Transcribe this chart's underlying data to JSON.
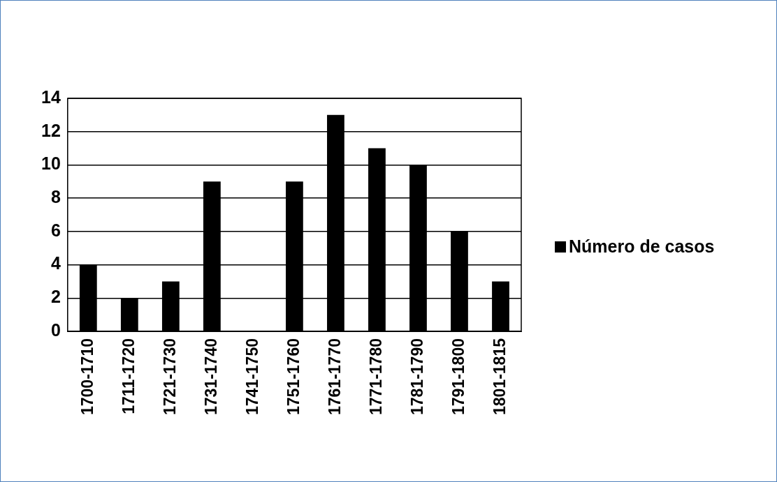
{
  "chart_data": {
    "type": "bar",
    "categories": [
      "1700-1710",
      "1711-1720",
      "1721-1730",
      "1731-1740",
      "1741-1750",
      "1751-1760",
      "1761-1770",
      "1771-1780",
      "1781-1790",
      "1791-1800",
      "1801-1815"
    ],
    "series": [
      {
        "name": "Número de casos",
        "color": "#000000",
        "values": [
          4,
          2,
          3,
          9,
          0,
          9,
          13,
          11,
          10,
          6,
          3
        ]
      }
    ],
    "ylim": [
      0,
      14
    ],
    "yticks": [
      0,
      2,
      4,
      6,
      8,
      10,
      12,
      14
    ],
    "grid": "y",
    "legend": "right"
  }
}
